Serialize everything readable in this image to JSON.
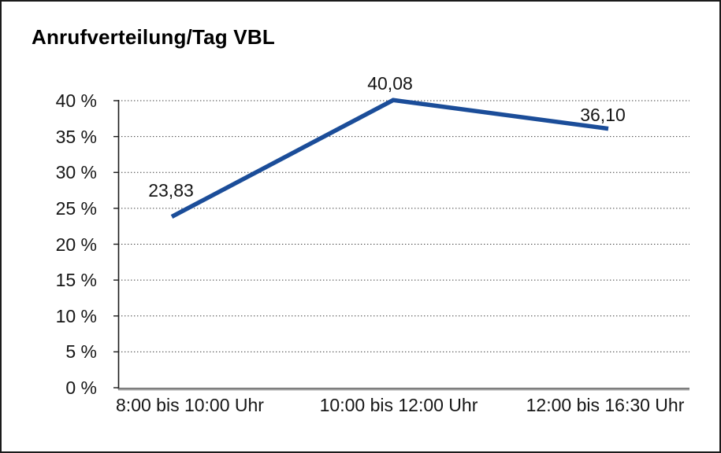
{
  "chart_data": {
    "type": "line",
    "title": "Anrufverteilung/Tag VBL",
    "categories": [
      "8:00 bis 10:00 Uhr",
      "10:00 bis 12:00 Uhr",
      "12:00 bis 16:30 Uhr"
    ],
    "values": [
      23.83,
      40.08,
      36.1
    ],
    "point_labels": [
      "23,83",
      "40,08",
      "36,10"
    ],
    "series_name": "Anrufverteilung",
    "xlabel": "",
    "ylabel": "",
    "ylim": [
      0,
      40
    ],
    "ytick_step": 5,
    "ytick_labels": [
      "40 %",
      "35 %",
      "30 %",
      "25 %",
      "20 %",
      "15 %",
      "10 %",
      "5 %",
      "0 %"
    ],
    "grid": "horizontal-dotted",
    "legend": "none",
    "line_color": "#1B4D99",
    "axis_color": "#1a1a1a",
    "gridline_color": "#3c3c3c",
    "baseline_color": "#9a9a9a"
  }
}
